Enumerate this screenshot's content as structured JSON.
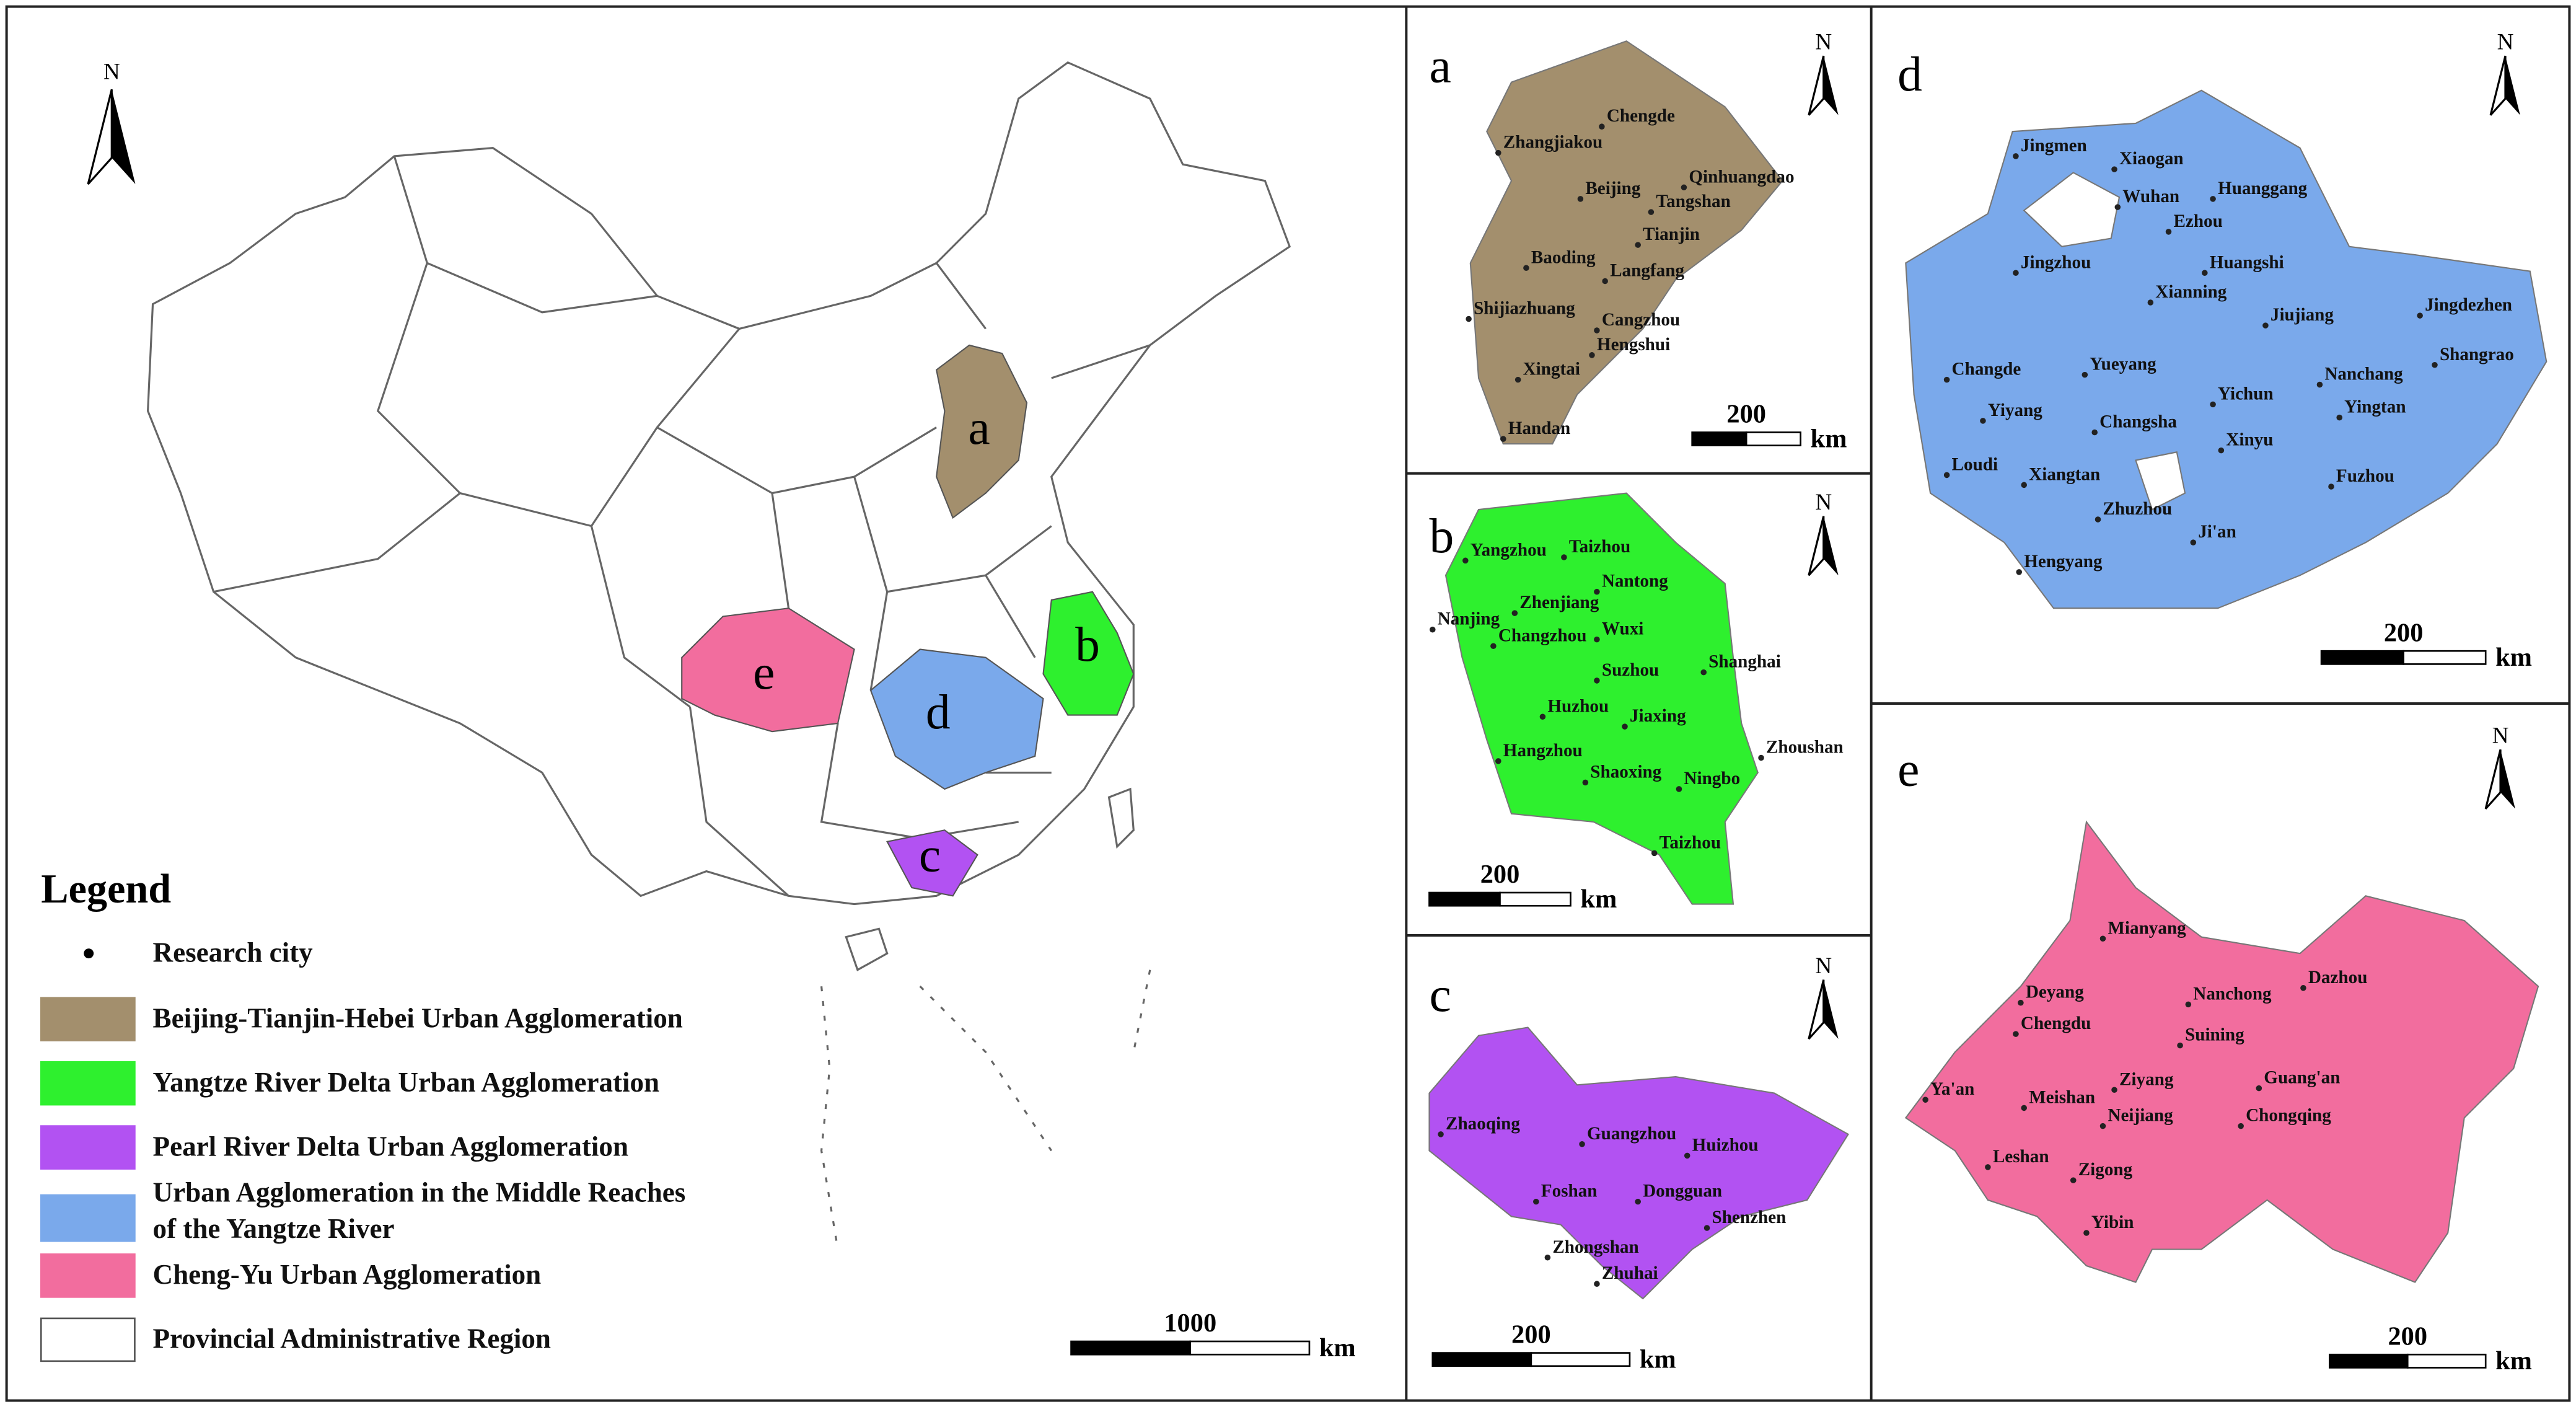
{
  "main_map": {
    "north": "N",
    "region_labels": [
      "a",
      "b",
      "c",
      "d",
      "e"
    ],
    "scale_bar": {
      "value": 1000,
      "unit": "km"
    }
  },
  "legend": {
    "title": "Legend",
    "items": [
      {
        "lines": [
          "Research city"
        ],
        "symbol": "dot",
        "color": "#000000"
      },
      {
        "lines": [
          "Beijing-Tianjin-Hebei Urban Agglomeration"
        ],
        "symbol": "box",
        "color": "#a38f6d"
      },
      {
        "lines": [
          "Yangtze River Delta Urban Agglomeration"
        ],
        "symbol": "box",
        "color": "#2ef02e"
      },
      {
        "lines": [
          "Pearl River Delta Urban Agglomeration"
        ],
        "symbol": "box",
        "color": "#b252f2"
      },
      {
        "lines": [
          "Urban Agglomeration in the Middle Reaches",
          " of the Yangtze River"
        ],
        "symbol": "box",
        "color": "#7aa9eb"
      },
      {
        "lines": [
          "Cheng-Yu Urban Agglomeration"
        ],
        "symbol": "box",
        "color": "#f26d9e"
      },
      {
        "lines": [
          "Provincial Administrative Region"
        ],
        "symbol": "box",
        "color": "#ffffff"
      }
    ]
  },
  "panels": [
    {
      "label": "a",
      "north": "N",
      "scale_bar": {
        "value": 200,
        "unit": "km"
      },
      "cities": [
        "Chengde",
        "Zhangjiakou",
        "Qinhuangdao",
        "Beijing",
        "Tangshan",
        "Tianjin",
        "Baoding",
        "Langfang",
        "Shijiazhuang",
        "Cangzhou",
        "Hengshui",
        "Xingtai",
        "Handan"
      ]
    },
    {
      "label": "b",
      "north": "N",
      "scale_bar": {
        "value": 200,
        "unit": "km"
      },
      "cities": [
        "Yangzhou",
        "Taizhou",
        "Nantong",
        "Zhenjiang",
        "Nanjing",
        "Changzhou",
        "Wuxi",
        "Shanghai",
        "Suzhou",
        "Huzhou",
        "Jiaxing",
        "Hangzhou",
        "Zhoushan",
        "Shaoxing",
        "Ningbo",
        "Taizhou"
      ]
    },
    {
      "label": "c",
      "north": "N",
      "scale_bar": {
        "value": 200,
        "unit": "km"
      },
      "cities": [
        "Zhaoqing",
        "Guangzhou",
        "Huizhou",
        "Foshan",
        "Dongguan",
        "Shenzhen",
        "Zhongshan",
        "Zhuhai"
      ]
    },
    {
      "label": "d",
      "north": "N",
      "scale_bar": {
        "value": 200,
        "unit": "km"
      },
      "cities": [
        "Jingmen",
        "Xiaogan",
        "Wuhan",
        "Huanggang",
        "Ezhou",
        "Jingzhou",
        "Huangshi",
        "Xianning",
        "Jiujiang",
        "Jingdezhen",
        "Changde",
        "Yueyang",
        "Nanchang",
        "Shangrao",
        "Yichun",
        "Yingtan",
        "Yiyang",
        "Changsha",
        "Xinyu",
        "Loudi",
        "Xiangtan",
        "Fuzhou",
        "Zhuzhou",
        "Ji'an",
        "Hengyang"
      ]
    },
    {
      "label": "e",
      "north": "N",
      "scale_bar": {
        "value": 200,
        "unit": "km"
      },
      "cities": [
        "Mianyang",
        "Dazhou",
        "Deyang",
        "Nanchong",
        "Chengdu",
        "Suining",
        "Ya'an",
        "Ziyang",
        "Guang'an",
        "Meishan",
        "Neijiang",
        "Chongqing",
        "Leshan",
        "Zigong",
        "Yibin"
      ]
    }
  ]
}
